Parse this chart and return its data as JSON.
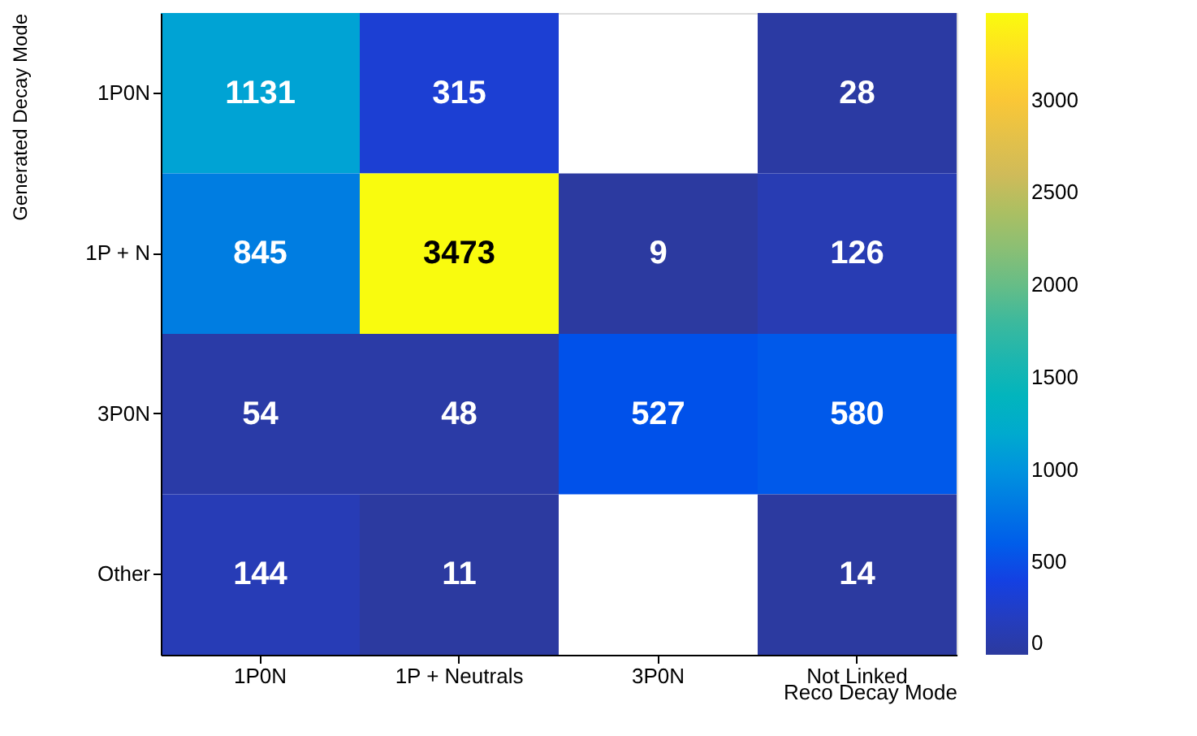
{
  "chart_data": {
    "type": "heatmap",
    "xlabel": "Reco Decay Mode",
    "ylabel": "Generated Decay Mode",
    "categories": [
      "1P0N",
      "1P + Neutrals",
      "3P0N",
      "Not Linked"
    ],
    "y_categories": [
      "1P0N",
      "1P + N",
      "3P0N",
      "Other"
    ],
    "cells": [
      [
        1131,
        315,
        null,
        28
      ],
      [
        845,
        3473,
        9,
        126
      ],
      [
        54,
        48,
        527,
        580
      ],
      [
        144,
        11,
        null,
        14
      ]
    ],
    "data_labels": true,
    "clim": [
      0,
      3473
    ],
    "cticks": [
      0,
      500,
      1000,
      1500,
      2000,
      2500,
      3000
    ]
  }
}
